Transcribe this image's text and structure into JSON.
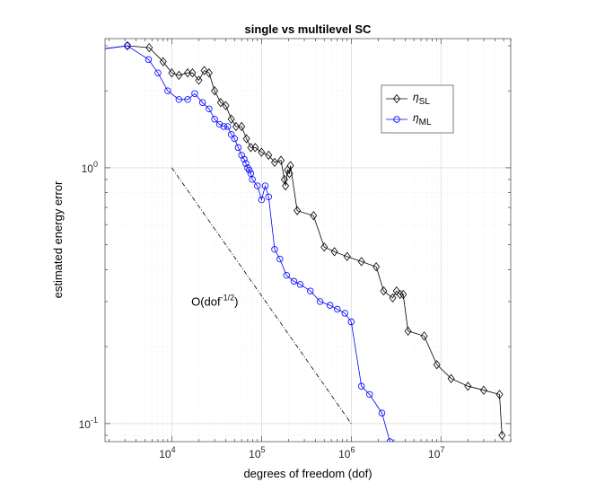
{
  "chart_data": {
    "type": "line",
    "title": "single vs multilevel SC",
    "xlabel": "degrees of freedom (dof)",
    "ylabel": "estimated energy error",
    "xscale": "log",
    "yscale": "log",
    "xlim": [
      1800,
      60000000
    ],
    "ylim": [
      0.085,
      3.2
    ],
    "xticks": [
      {
        "value": 10000,
        "base": "10",
        "exp": "4"
      },
      {
        "value": 100000,
        "base": "10",
        "exp": "5"
      },
      {
        "value": 1000000,
        "base": "10",
        "exp": "6"
      },
      {
        "value": 10000000,
        "base": "10",
        "exp": "7"
      }
    ],
    "yticks": [
      {
        "value": 0.1,
        "base": "10",
        "exp": "-1"
      },
      {
        "value": 1,
        "base": "10",
        "exp": "0"
      }
    ],
    "grid": true,
    "legend_location": "top-right",
    "series": [
      {
        "name": "η_SL",
        "legend_base": "η",
        "legend_sub": "SL",
        "color": "#000000",
        "marker": "diamond",
        "x": [
          1500,
          3200,
          5600,
          8000,
          10000,
          12000,
          15000,
          17000,
          20000,
          23000,
          26000,
          30000,
          35000,
          40000,
          46000,
          52000,
          60000,
          68000,
          76000,
          85000,
          100000,
          120000,
          140000,
          165000,
          180000,
          185000,
          195000,
          205000,
          210000,
          250000,
          380000,
          500000,
          650000,
          900000,
          1300000,
          1900000,
          2300000,
          2900000,
          3200000,
          3500000,
          3800000,
          4300000,
          6500000,
          9000000,
          13000000,
          20000000,
          30000000,
          45000000,
          48000000
        ],
        "y": [
          2.9,
          3.0,
          2.95,
          2.6,
          2.35,
          2.3,
          2.35,
          2.35,
          2.2,
          2.4,
          2.35,
          2.0,
          1.8,
          1.75,
          1.55,
          1.45,
          1.45,
          1.3,
          1.2,
          1.2,
          1.15,
          1.12,
          1.05,
          1.07,
          0.9,
          0.85,
          0.98,
          0.95,
          1.02,
          0.68,
          0.65,
          0.49,
          0.47,
          0.45,
          0.43,
          0.41,
          0.33,
          0.31,
          0.33,
          0.32,
          0.32,
          0.23,
          0.22,
          0.17,
          0.15,
          0.14,
          0.135,
          0.13,
          0.09
        ]
      },
      {
        "name": "η_ML",
        "legend_base": "η",
        "legend_sub": "ML",
        "color": "#0000ff",
        "marker": "circle",
        "x": [
          1500,
          3200,
          5500,
          7000,
          9000,
          12000,
          15000,
          18000,
          22000,
          26000,
          30000,
          34000,
          38000,
          42000,
          46000,
          50000,
          55000,
          60000,
          64000,
          67000,
          70000,
          73000,
          76000,
          79000,
          90000,
          100000,
          110000,
          120000,
          140000,
          160000,
          190000,
          230000,
          270000,
          350000,
          450000,
          580000,
          700000,
          850000,
          1000000,
          1300000,
          1600000,
          2200000,
          2700000,
          3500000
        ],
        "y": [
          2.9,
          3.0,
          2.65,
          2.35,
          2.0,
          1.85,
          1.85,
          1.95,
          1.8,
          1.7,
          1.55,
          1.48,
          1.45,
          1.45,
          1.35,
          1.3,
          1.2,
          1.12,
          1.08,
          1.04,
          1.0,
          0.98,
          0.95,
          0.9,
          0.85,
          0.75,
          0.85,
          0.77,
          0.48,
          0.44,
          0.38,
          0.36,
          0.35,
          0.33,
          0.3,
          0.29,
          0.28,
          0.27,
          0.25,
          0.14,
          0.13,
          0.11,
          0.085,
          0.08
        ]
      },
      {
        "name": "O(dof^-1/2) reference",
        "color": "#000000",
        "style": "dash-dot",
        "x": [
          10000,
          1000000
        ],
        "y": [
          1.0,
          0.1
        ]
      }
    ],
    "annotations": [
      {
        "base": "O(dof",
        "sup": "-1/2",
        "tail": ")",
        "x": 30000,
        "y": 0.28
      }
    ]
  }
}
